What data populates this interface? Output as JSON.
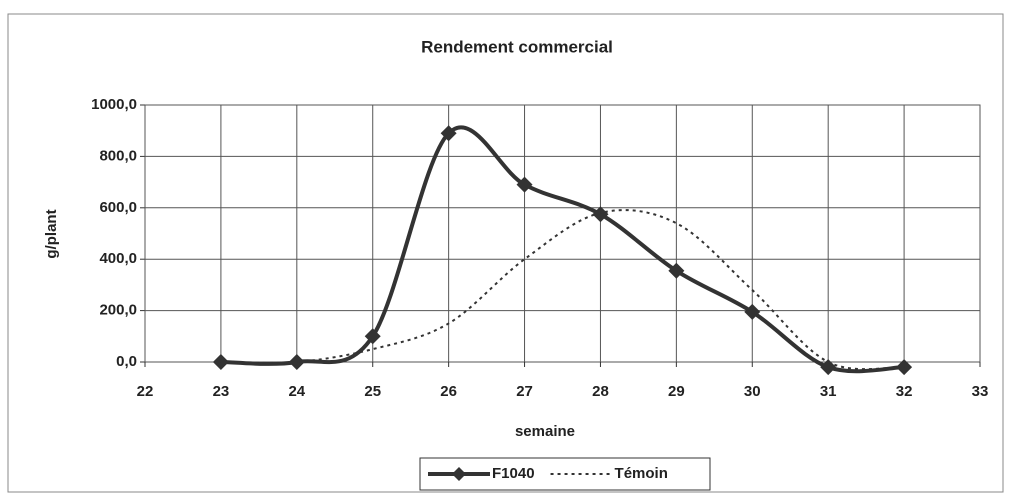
{
  "chart_data": {
    "type": "line",
    "title": "Rendement commercial",
    "y_label": "g/plant",
    "x_label": "semaine",
    "x": [
      23,
      24,
      25,
      26,
      27,
      28,
      29,
      30,
      31,
      32
    ],
    "series": [
      {
        "name": "F1040",
        "color": "#333333",
        "style": "solid",
        "marker": "diamond",
        "values": [
          0,
          0,
          100,
          890,
          690,
          575,
          355,
          195,
          -20,
          -20
        ]
      },
      {
        "name": "Témoin",
        "color": "#333333",
        "style": "dotted",
        "marker": "none",
        "values": [
          0,
          0,
          50,
          150,
          400,
          580,
          540,
          280,
          0,
          -20
        ]
      }
    ],
    "xlim": [
      22,
      33
    ],
    "xticks": [
      22,
      23,
      24,
      25,
      26,
      27,
      28,
      29,
      30,
      31,
      32,
      33
    ],
    "ylim": [
      0,
      1000
    ],
    "yticks": [
      {
        "value": 0,
        "label": "0,0"
      },
      {
        "value": 200,
        "label": "200,0"
      },
      {
        "value": 400,
        "label": "400,0"
      },
      {
        "value": 600,
        "label": "600,0"
      },
      {
        "value": 800,
        "label": "800,0"
      },
      {
        "value": 1000,
        "label": "1000,0"
      }
    ],
    "grid": true,
    "legend": "bottom"
  }
}
